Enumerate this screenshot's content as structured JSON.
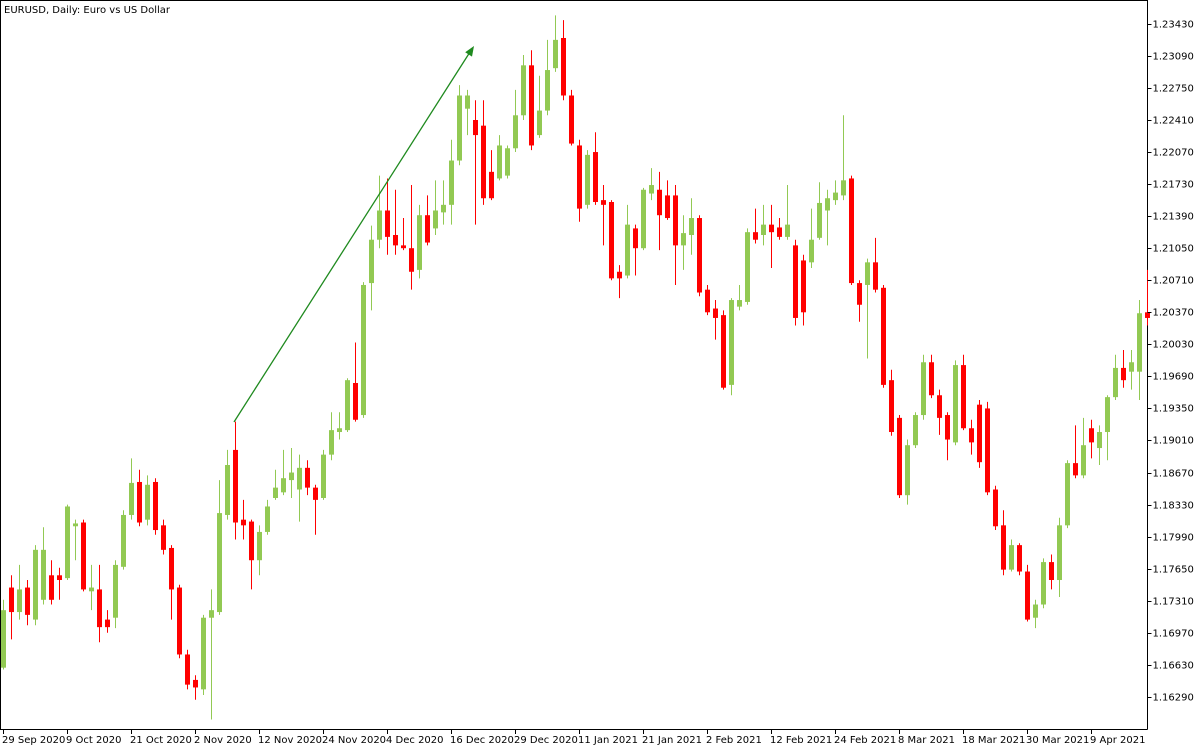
{
  "chart_data": {
    "type": "candlestick",
    "title": "EURUSD, Daily:  Euro vs US Dollar",
    "categories": [
      "29 Sep 2020",
      null,
      null,
      null,
      null,
      null,
      null,
      null,
      "9 Oct 2020",
      null,
      null,
      null,
      null,
      null,
      null,
      null,
      "21 Oct 2020",
      null,
      null,
      null,
      null,
      null,
      null,
      null,
      "2 Nov 2020",
      null,
      null,
      null,
      null,
      null,
      null,
      null,
      "12 Nov 2020",
      null,
      null,
      null,
      null,
      null,
      null,
      null,
      "24 Nov 2020",
      null,
      null,
      null,
      null,
      null,
      null,
      null,
      "4 Dec 2020",
      null,
      null,
      null,
      null,
      null,
      null,
      null,
      "16 Dec 2020",
      null,
      null,
      null,
      null,
      null,
      null,
      null,
      "29 Dec 2020",
      null,
      null,
      null,
      null,
      null,
      null,
      null,
      "11 Jan 2021",
      null,
      null,
      null,
      null,
      null,
      null,
      null,
      "21 Jan 2021",
      null,
      null,
      null,
      null,
      null,
      null,
      null,
      "2 Feb 2021",
      null,
      null,
      null,
      null,
      null,
      null,
      null,
      "12 Feb 2021",
      null,
      null,
      null,
      null,
      null,
      null,
      null,
      "24 Feb 2021",
      null,
      null,
      null,
      null,
      null,
      null,
      null,
      "8 Mar 2021",
      null,
      null,
      null,
      null,
      null,
      null,
      null,
      "18 Mar 2021",
      null,
      null,
      null,
      null,
      null,
      null,
      null,
      "30 Mar 2021",
      null,
      null,
      null,
      null,
      null,
      null,
      null,
      "9 Apr 2021",
      null,
      null,
      null,
      null,
      null,
      null,
      null
    ],
    "open": [
      1.166,
      1.1745,
      1.1719,
      1.1745,
      1.1711,
      1.1732,
      1.1758,
      1.1758,
      1.1755,
      1.181,
      1.1814,
      1.1741,
      1.1743,
      1.1711,
      1.1713,
      1.1767,
      1.1822,
      1.1857,
      1.1817,
      1.1857,
      1.1811,
      1.1787,
      1.1745,
      1.1674,
      1.1647,
      1.1637,
      1.1713,
      1.1719,
      1.1822,
      1.1891,
      1.1817,
      1.1815,
      1.1774,
      1.1804,
      1.184,
      1.1846,
      1.1859,
      1.1849,
      1.1872,
      1.1851,
      1.184,
      1.1886,
      1.191,
      1.1912,
      1.1962,
      1.1928,
      1.2068,
      1.2114,
      1.2145,
      1.2119,
      1.2108,
      1.2105,
      1.2082,
      1.214,
      1.2126,
      1.2143,
      1.2151,
      1.2198,
      1.2253,
      1.2241,
      1.2235,
      1.2186,
      1.2179,
      1.2182,
      1.2211,
      1.2246,
      1.2299,
      1.2225,
      1.2251,
      1.2296,
      1.2328,
      1.2267,
      1.2214,
      1.2151,
      1.2207,
      1.2156,
      1.2154,
      1.208,
      1.2076,
      1.2126,
      1.2105,
      1.2163,
      1.2167,
      1.2161,
      1.2161,
      1.2108,
      1.2119,
      1.2137,
      1.2061,
      1.2041,
      1.2034,
      1.196,
      1.2043,
      1.2048,
      1.2122,
      1.2119,
      1.213,
      1.2127,
      1.2117,
      1.2108,
      1.2092,
      1.209,
      1.2116,
      1.2145,
      1.2156,
      1.2161,
      1.2179,
      1.2068,
      1.2066,
      1.209,
      1.2063,
      1.1965,
      1.1925,
      1.1843,
      1.1896,
      1.1928,
      1.1984,
      1.1949,
      1.1928,
      1.1899,
      1.1981,
      1.1914,
      1.1939,
      1.1935,
      1.1849,
      1.1811,
      1.1764,
      1.179,
      1.1762,
      1.1713,
      1.1727,
      1.1772,
      1.1753,
      1.1811,
      1.1877,
      1.1864,
      1.1914,
      1.1893,
      1.191,
      1.1947,
      1.1978,
      1.1974,
      1.1974,
      1.2037
    ],
    "high": [
      1.1732,
      1.1758,
      1.1769,
      1.1753,
      1.179,
      1.1809,
      1.1774,
      1.1766,
      1.1833,
      1.1817,
      1.1817,
      1.1769,
      1.1769,
      1.1721,
      1.1774,
      1.1827,
      1.1882,
      1.187,
      1.1864,
      1.1861,
      1.1817,
      1.179,
      1.1748,
      1.1679,
      1.1652,
      1.1716,
      1.1743,
      1.1859,
      1.1891,
      1.1921,
      1.1838,
      1.1817,
      1.1811,
      1.1838,
      1.187,
      1.1891,
      1.1893,
      1.1886,
      1.188,
      1.1854,
      1.1891,
      1.1931,
      1.1931,
      1.1967,
      1.2005,
      1.2069,
      1.2129,
      1.2182,
      1.2179,
      1.2167,
      1.2137,
      1.2172,
      1.2151,
      1.2161,
      1.2177,
      1.2177,
      1.222,
      1.2278,
      1.2273,
      1.2262,
      1.2262,
      1.2209,
      1.2225,
      1.2214,
      1.2273,
      1.231,
      1.2315,
      1.2288,
      1.2326,
      1.2352,
      1.2347,
      1.2273,
      1.222,
      1.2209,
      1.2228,
      1.2172,
      1.2156,
      1.2087,
      1.2151,
      1.213,
      1.2169,
      1.219,
      1.2186,
      1.2177,
      1.2172,
      1.214,
      1.2158,
      1.214,
      1.2066,
      1.205,
      1.2039,
      1.2052,
      1.2066,
      1.2126,
      1.2147,
      1.2151,
      1.2151,
      1.2137,
      1.2172,
      1.2114,
      1.2098,
      1.2147,
      1.2175,
      1.2167,
      1.2177,
      1.2246,
      1.2182,
      1.2071,
      1.2094,
      1.2116,
      1.2066,
      1.1976,
      1.1928,
      1.1902,
      1.1931,
      1.1992,
      1.1992,
      1.1955,
      1.1931,
      1.1986,
      1.1992,
      1.1923,
      1.1944,
      1.1942,
      1.1853,
      1.1827,
      1.1796,
      1.1792,
      1.1769,
      1.1732,
      1.1776,
      1.178,
      1.1819,
      1.188,
      1.1917,
      1.1925,
      1.1923,
      1.1917,
      1.1949,
      1.1992,
      1.1997,
      1.1997,
      1.205,
      1.2082
    ],
    "low": [
      1.1658,
      1.169,
      1.1711,
      1.1705,
      1.1705,
      1.1727,
      1.1727,
      1.1732,
      1.1753,
      1.1774,
      1.1741,
      1.1721,
      1.1687,
      1.1697,
      1.1702,
      1.1764,
      1.1817,
      1.181,
      1.1811,
      1.1801,
      1.178,
      1.1711,
      1.167,
      1.1637,
      1.1626,
      1.1631,
      1.1605,
      1.1716,
      1.1817,
      1.1796,
      1.1796,
      1.1743,
      1.1758,
      1.1801,
      1.1838,
      1.1843,
      1.184,
      1.1815,
      1.1843,
      1.1801,
      1.1838,
      1.188,
      1.1902,
      1.191,
      1.1921,
      1.1925,
      1.2039,
      1.2105,
      1.2098,
      1.2098,
      1.2103,
      1.2061,
      1.2073,
      1.2108,
      1.2119,
      1.213,
      1.213,
      1.2193,
      1.2225,
      1.213,
      1.2151,
      1.2156,
      1.2177,
      1.2179,
      1.2207,
      1.2241,
      1.2209,
      1.2222,
      1.2246,
      1.2292,
      1.2262,
      1.2214,
      1.2133,
      1.2147,
      1.2151,
      1.2108,
      1.2071,
      1.2052,
      1.2073,
      1.2076,
      1.2103,
      1.2156,
      1.2103,
      1.2135,
      1.2066,
      1.2082,
      1.2098,
      1.2054,
      1.2034,
      1.2008,
      1.1955,
      1.1949,
      1.2039,
      1.2045,
      1.211,
      1.2108,
      1.2084,
      1.2114,
      1.2114,
      1.2023,
      1.2023,
      1.2084,
      1.2114,
      1.2108,
      1.2151,
      1.2156,
      1.2066,
      1.2027,
      1.1988,
      1.2058,
      1.1957,
      1.1906,
      1.184,
      1.1833,
      1.1893,
      1.1923,
      1.1946,
      1.1907,
      1.188,
      1.1896,
      1.1912,
      1.1886,
      1.1872,
      1.1843,
      1.1806,
      1.1758,
      1.1762,
      1.1758,
      1.1709,
      1.1702,
      1.1723,
      1.1743,
      1.1735,
      1.1808,
      1.1861,
      1.1861,
      1.1882,
      1.1875,
      1.188,
      1.1944,
      1.1957,
      1.1955,
      1.1944,
      1.2023
    ],
    "close": [
      1.1721,
      1.1719,
      1.1743,
      1.1716,
      1.1785,
      1.1785,
      1.1732,
      1.1753,
      1.1831,
      1.1813,
      1.1743,
      1.1745,
      1.1703,
      1.1703,
      1.1769,
      1.1822,
      1.1856,
      1.1814,
      1.1854,
      1.1806,
      1.1785,
      1.1743,
      1.1674,
      1.1642,
      1.1639,
      1.1713,
      1.1721,
      1.1824,
      1.1875,
      1.1814,
      1.1811,
      1.1774,
      1.1804,
      1.1831,
      1.1851,
      1.1861,
      1.1867,
      1.1872,
      1.1851,
      1.1838,
      1.1886,
      1.1912,
      1.1914,
      1.1965,
      1.1923,
      1.2066,
      1.2114,
      1.2145,
      1.2117,
      1.2108,
      1.2105,
      1.208,
      1.214,
      1.2111,
      1.2145,
      1.2151,
      1.2198,
      1.2267,
      1.2267,
      1.2225,
      1.2158,
      1.2158,
      1.2214,
      1.2211,
      1.2246,
      1.2299,
      1.2214,
      1.2251,
      1.2294,
      1.2326,
      1.2267,
      1.2216,
      1.2147,
      1.2204,
      1.2154,
      1.2151,
      1.2073,
      1.2073,
      1.213,
      1.2105,
      1.2167,
      1.2172,
      1.214,
      1.2137,
      1.2108,
      1.2121,
      1.2137,
      1.2058,
      1.2037,
      1.2031,
      1.1957,
      1.205,
      1.205,
      1.2122,
      1.2114,
      1.213,
      1.2122,
      1.2117,
      1.213,
      1.2031,
      1.2037,
      1.2114,
      1.2153,
      1.2158,
      1.2164,
      1.2177,
      1.2068,
      1.2045,
      1.209,
      1.2061,
      1.196,
      1.191,
      1.1843,
      1.1896,
      1.1928,
      1.1984,
      1.1949,
      1.1925,
      1.1902,
      1.1981,
      1.1914,
      1.1899,
      1.1878,
      1.1846,
      1.181,
      1.1764,
      1.179,
      1.1762,
      1.1711,
      1.1727,
      1.1772,
      1.1753,
      1.1811,
      1.1877,
      1.1864,
      1.1896,
      1.1899,
      1.191,
      1.1947,
      1.1978,
      1.1965,
      1.1984,
      1.2036,
      1.2031
    ],
    "up_color": "#92c953",
    "down_color": "#ff0000",
    "ylim": [
      1.1596,
      1.2363
    ],
    "yticks": [
      {
        "value": 1.2343,
        "label": "1.23430"
      },
      {
        "value": 1.2309,
        "label": "1.23090"
      },
      {
        "value": 1.2275,
        "label": "1.22750"
      },
      {
        "value": 1.2241,
        "label": "1.22410"
      },
      {
        "value": 1.2207,
        "label": "1.22070"
      },
      {
        "value": 1.2173,
        "label": "1.21730"
      },
      {
        "value": 1.2139,
        "label": "1.21390"
      },
      {
        "value": 1.2105,
        "label": "1.21050"
      },
      {
        "value": 1.2071,
        "label": "1.20710"
      },
      {
        "value": 1.2037,
        "label": "1.20370"
      },
      {
        "value": 1.2003,
        "label": "1.20030"
      },
      {
        "value": 1.1969,
        "label": "1.19690"
      },
      {
        "value": 1.1935,
        "label": "1.19350"
      },
      {
        "value": 1.1901,
        "label": "1.19010"
      },
      {
        "value": 1.1867,
        "label": "1.18670"
      },
      {
        "value": 1.1833,
        "label": "1.18330"
      },
      {
        "value": 1.1799,
        "label": "1.17990"
      },
      {
        "value": 1.1765,
        "label": "1.17650"
      },
      {
        "value": 1.1731,
        "label": "1.17310"
      },
      {
        "value": 1.1697,
        "label": "1.16970"
      },
      {
        "value": 1.1663,
        "label": "1.16630"
      },
      {
        "value": 1.1629,
        "label": "1.16290"
      }
    ],
    "grid": false
  }
}
